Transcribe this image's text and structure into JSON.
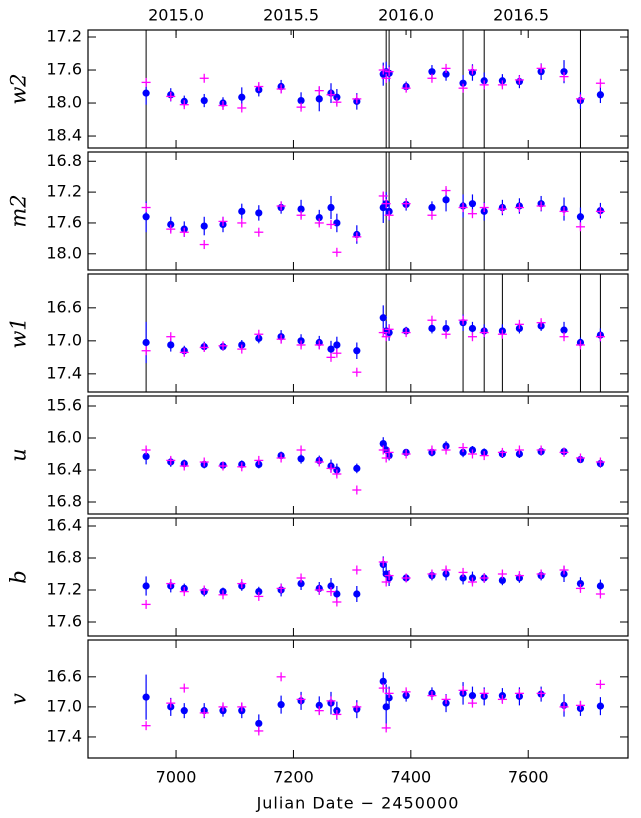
{
  "chart_data": [
    {
      "type": "scatter",
      "ylabel": "w2",
      "x2lim": [
        2014.617,
        2016.965
      ],
      "x2ticks": [
        {
          "value": 2015,
          "label": "2015.0"
        },
        2015.5,
        {
          "value": 2016,
          "label": "2016.0"
        },
        2016.5
      ],
      "xlim": [
        6850,
        7770
      ],
      "xticks": [
        7000,
        7200,
        7400,
        7600
      ],
      "ylim": [
        18.545,
        17.115
      ],
      "yticks": [
        17.2,
        17.6,
        {
          "value": 18,
          "label": "18.0"
        },
        18.4
      ],
      "vlines": [
        6949,
        7358,
        7363,
        7489,
        7525,
        7689
      ],
      "x": [
        6949,
        6991,
        7014,
        7048,
        7080,
        7112,
        7141,
        7179,
        7213,
        7244,
        7264,
        7274,
        7308,
        7353,
        7358,
        7363,
        7392,
        7436,
        7460,
        7489,
        7505,
        7525,
        7556,
        7585,
        7622,
        7661,
        7689,
        7723
      ],
      "series": [
        {
          "marker": "circle",
          "color": "#0000ff",
          "values": [
            17.88,
            17.9,
            17.98,
            17.97,
            18.0,
            17.93,
            17.84,
            17.8,
            17.97,
            17.95,
            17.88,
            17.93,
            17.98,
            17.65,
            17.62,
            17.64,
            17.8,
            17.62,
            17.65,
            17.76,
            17.63,
            17.73,
            17.73,
            17.74,
            17.62,
            17.62,
            17.97,
            17.9
          ],
          "errors": [
            0.14,
            0.08,
            0.07,
            0.08,
            0.07,
            0.12,
            0.08,
            0.08,
            0.1,
            0.15,
            0.12,
            0.1,
            0.1,
            0.14,
            0.12,
            0.1,
            0.06,
            0.08,
            0.08,
            0.1,
            0.1,
            0.1,
            0.08,
            0.08,
            0.1,
            0.14,
            0.1,
            0.1
          ]
        },
        {
          "marker": "plus",
          "color": "#ff00ff",
          "values": [
            17.75,
            17.92,
            18.02,
            17.7,
            18.03,
            18.06,
            17.8,
            17.83,
            18.05,
            17.85,
            17.9,
            17.99,
            17.95,
            17.6,
            17.7,
            17.62,
            17.82,
            17.7,
            17.58,
            17.82,
            17.6,
            17.78,
            17.78,
            17.72,
            17.58,
            17.68,
            17.95,
            17.76
          ]
        }
      ]
    },
    {
      "type": "scatter",
      "ylabel": "m2",
      "xlim": [
        6850,
        7770
      ],
      "xticks": [
        7000,
        7200,
        7400,
        7600
      ],
      "ylim": [
        18.21,
        16.68
      ],
      "yticks": [
        16.8,
        17.2,
        17.6,
        {
          "value": 18,
          "label": "18.0"
        }
      ],
      "vlines": [
        6949,
        7358,
        7363,
        7489,
        7525,
        7689
      ],
      "x": [
        6949,
        6991,
        7014,
        7048,
        7080,
        7112,
        7141,
        7179,
        7213,
        7244,
        7264,
        7274,
        7308,
        7353,
        7358,
        7363,
        7392,
        7436,
        7460,
        7489,
        7505,
        7525,
        7556,
        7585,
        7622,
        7661,
        7689,
        7723
      ],
      "series": [
        {
          "marker": "circle",
          "color": "#0000ff",
          "values": [
            17.52,
            17.62,
            17.68,
            17.64,
            17.62,
            17.45,
            17.47,
            17.4,
            17.42,
            17.53,
            17.4,
            17.6,
            17.75,
            17.4,
            17.35,
            17.45,
            17.36,
            17.4,
            17.3,
            17.38,
            17.35,
            17.45,
            17.4,
            17.38,
            17.35,
            17.42,
            17.52,
            17.44
          ],
          "errors": [
            0.2,
            0.1,
            0.1,
            0.12,
            0.1,
            0.1,
            0.1,
            0.08,
            0.12,
            0.1,
            0.15,
            0.12,
            0.12,
            0.2,
            0.15,
            0.12,
            0.08,
            0.08,
            0.15,
            0.15,
            0.12,
            0.12,
            0.1,
            0.1,
            0.1,
            0.15,
            0.12,
            0.1
          ]
        },
        {
          "marker": "plus",
          "color": "#ff00ff",
          "values": [
            17.4,
            17.68,
            17.72,
            17.88,
            17.58,
            17.6,
            17.72,
            17.38,
            17.5,
            17.6,
            17.62,
            17.98,
            17.78,
            17.25,
            17.35,
            17.5,
            17.35,
            17.5,
            17.18,
            17.4,
            17.48,
            17.4,
            17.42,
            17.4,
            17.38,
            17.45,
            17.65,
            17.45
          ]
        }
      ]
    },
    {
      "type": "scatter",
      "ylabel": "w1",
      "xlim": [
        6850,
        7770
      ],
      "xticks": [
        7000,
        7200,
        7400,
        7600
      ],
      "ylim": [
        17.62,
        16.19
      ],
      "yticks": [
        16.6,
        {
          "value": 17,
          "label": "17.0"
        },
        17.4
      ],
      "vlines": [
        6949,
        7358,
        7489,
        7525,
        7556,
        7689,
        7723
      ],
      "x": [
        6949,
        6991,
        7014,
        7048,
        7080,
        7112,
        7141,
        7179,
        7213,
        7244,
        7264,
        7274,
        7308,
        7353,
        7358,
        7363,
        7392,
        7436,
        7460,
        7489,
        7505,
        7525,
        7556,
        7585,
        7622,
        7661,
        7689,
        7723
      ],
      "series": [
        {
          "marker": "circle",
          "color": "#0000ff",
          "values": [
            17.02,
            17.05,
            17.12,
            17.07,
            17.07,
            17.05,
            16.97,
            16.95,
            17.0,
            17.02,
            17.1,
            17.05,
            17.12,
            16.72,
            16.88,
            16.9,
            16.88,
            16.85,
            16.85,
            16.78,
            16.85,
            16.88,
            16.88,
            16.85,
            16.82,
            16.87,
            17.02,
            16.93
          ],
          "errors": [
            0.25,
            0.08,
            0.06,
            0.06,
            0.05,
            0.06,
            0.06,
            0.08,
            0.08,
            0.08,
            0.1,
            0.1,
            0.1,
            0.15,
            0.12,
            0.1,
            0.05,
            0.06,
            0.1,
            0.1,
            0.08,
            0.08,
            0.08,
            0.06,
            0.06,
            0.1,
            0.06,
            0.08
          ]
        },
        {
          "marker": "plus",
          "color": "#ff00ff",
          "values": [
            17.12,
            16.95,
            17.14,
            17.08,
            17.06,
            17.1,
            16.92,
            16.98,
            17.05,
            17.05,
            17.2,
            17.15,
            17.38,
            16.9,
            16.95,
            16.86,
            16.9,
            16.75,
            16.92,
            16.75,
            16.95,
            16.9,
            16.92,
            16.8,
            16.78,
            16.95,
            17.05,
            16.95
          ]
        }
      ]
    },
    {
      "type": "scatter",
      "ylabel": "u",
      "xlim": [
        6850,
        7770
      ],
      "xticks": [
        7000,
        7200,
        7400,
        7600
      ],
      "ylim": [
        16.95,
        15.475
      ],
      "yticks": [
        15.6,
        {
          "value": 16,
          "label": "16.0"
        },
        16.4,
        16.8
      ],
      "vlines": [],
      "x": [
        6949,
        6991,
        7014,
        7048,
        7080,
        7112,
        7141,
        7179,
        7213,
        7244,
        7264,
        7274,
        7308,
        7353,
        7358,
        7363,
        7392,
        7436,
        7460,
        7489,
        7505,
        7525,
        7556,
        7585,
        7622,
        7661,
        7689,
        7723
      ],
      "series": [
        {
          "marker": "circle",
          "color": "#0000ff",
          "values": [
            16.23,
            16.3,
            16.32,
            16.33,
            16.34,
            16.33,
            16.33,
            16.22,
            16.26,
            16.28,
            16.35,
            16.4,
            16.38,
            16.07,
            16.15,
            16.22,
            16.18,
            16.18,
            16.1,
            16.18,
            16.15,
            16.18,
            16.2,
            16.2,
            16.17,
            16.17,
            16.27,
            16.32
          ],
          "errors": [
            0.1,
            0.06,
            0.05,
            0.05,
            0.04,
            0.05,
            0.05,
            0.05,
            0.06,
            0.06,
            0.08,
            0.08,
            0.06,
            0.08,
            0.08,
            0.06,
            0.04,
            0.05,
            0.06,
            0.06,
            0.05,
            0.05,
            0.05,
            0.05,
            0.05,
            0.05,
            0.04,
            0.05
          ]
        },
        {
          "marker": "plus",
          "color": "#ff00ff",
          "values": [
            16.15,
            16.28,
            16.35,
            16.3,
            16.35,
            16.36,
            16.28,
            16.25,
            16.15,
            16.3,
            16.38,
            16.45,
            16.65,
            16.15,
            16.25,
            16.18,
            16.2,
            16.15,
            16.15,
            16.12,
            16.2,
            16.22,
            16.18,
            16.15,
            16.15,
            16.18,
            16.25,
            16.3
          ]
        }
      ]
    },
    {
      "type": "scatter",
      "ylabel": "b",
      "xlim": [
        6850,
        7770
      ],
      "xticks": [
        7000,
        7200,
        7400,
        7600
      ],
      "ylim": [
        17.775,
        16.3
      ],
      "yticks": [
        16.4,
        16.8,
        17.2,
        17.6
      ],
      "vlines": [],
      "x": [
        6949,
        6991,
        7014,
        7048,
        7080,
        7112,
        7141,
        7179,
        7213,
        7244,
        7264,
        7274,
        7308,
        7353,
        7358,
        7363,
        7392,
        7436,
        7460,
        7489,
        7505,
        7525,
        7556,
        7585,
        7622,
        7661,
        7689,
        7723
      ],
      "series": [
        {
          "marker": "circle",
          "color": "#0000ff",
          "values": [
            17.15,
            17.15,
            17.18,
            17.22,
            17.22,
            17.15,
            17.22,
            17.2,
            17.12,
            17.18,
            17.15,
            17.25,
            17.25,
            16.88,
            17.0,
            17.05,
            17.05,
            17.02,
            17.0,
            17.05,
            17.05,
            17.05,
            17.08,
            17.05,
            17.02,
            17.0,
            17.12,
            17.15
          ],
          "errors": [
            0.12,
            0.08,
            0.06,
            0.06,
            0.05,
            0.06,
            0.06,
            0.08,
            0.08,
            0.08,
            0.1,
            0.1,
            0.1,
            0.1,
            0.12,
            0.1,
            0.05,
            0.06,
            0.08,
            0.08,
            0.08,
            0.06,
            0.06,
            0.06,
            0.06,
            0.1,
            0.08,
            0.08
          ]
        },
        {
          "marker": "plus",
          "color": "#ff00ff",
          "values": [
            17.38,
            17.12,
            17.22,
            17.2,
            17.26,
            17.12,
            17.28,
            17.18,
            17.05,
            17.2,
            17.22,
            17.35,
            16.95,
            16.85,
            17.1,
            17.02,
            17.05,
            17.0,
            16.95,
            16.98,
            17.1,
            17.05,
            17.0,
            17.02,
            17.0,
            16.95,
            17.18,
            17.25
          ]
        }
      ]
    },
    {
      "type": "scatter",
      "ylabel": "v",
      "xlabel": "Julian Date − 2450000",
      "xlim": [
        6850,
        7770
      ],
      "xticks": [
        7000,
        7200,
        7400,
        7600
      ],
      "ylim": [
        17.68,
        16.11
      ],
      "yticks": [
        16.6,
        {
          "value": 17,
          "label": "17.0"
        },
        17.4
      ],
      "vlines": [],
      "x": [
        6949,
        6991,
        7014,
        7048,
        7080,
        7112,
        7141,
        7179,
        7213,
        7244,
        7264,
        7274,
        7308,
        7353,
        7358,
        7363,
        7392,
        7436,
        7460,
        7489,
        7505,
        7525,
        7556,
        7585,
        7622,
        7661,
        7689,
        7723
      ],
      "series": [
        {
          "marker": "circle",
          "color": "#0000ff",
          "values": [
            16.87,
            17.0,
            17.05,
            17.05,
            17.05,
            17.05,
            17.22,
            16.97,
            16.92,
            16.98,
            16.95,
            17.05,
            17.03,
            16.66,
            17.0,
            16.88,
            16.85,
            16.82,
            16.95,
            16.82,
            16.85,
            16.86,
            16.85,
            16.86,
            16.83,
            16.98,
            17.02,
            16.99
          ],
          "errors": [
            0.3,
            0.12,
            0.1,
            0.1,
            0.08,
            0.1,
            0.12,
            0.12,
            0.12,
            0.12,
            0.15,
            0.12,
            0.12,
            0.12,
            0.3,
            0.15,
            0.08,
            0.08,
            0.12,
            0.15,
            0.12,
            0.12,
            0.1,
            0.12,
            0.1,
            0.15,
            0.1,
            0.12
          ]
        },
        {
          "marker": "plus",
          "color": "#ff00ff",
          "values": [
            17.25,
            16.95,
            16.75,
            17.08,
            17.0,
            17.0,
            17.32,
            16.6,
            16.9,
            17.05,
            16.92,
            17.1,
            17.0,
            16.75,
            17.28,
            16.82,
            16.8,
            16.85,
            16.9,
            16.78,
            16.95,
            16.82,
            16.9,
            16.82,
            16.82,
            17.0,
            16.98,
            16.7
          ]
        }
      ]
    }
  ]
}
